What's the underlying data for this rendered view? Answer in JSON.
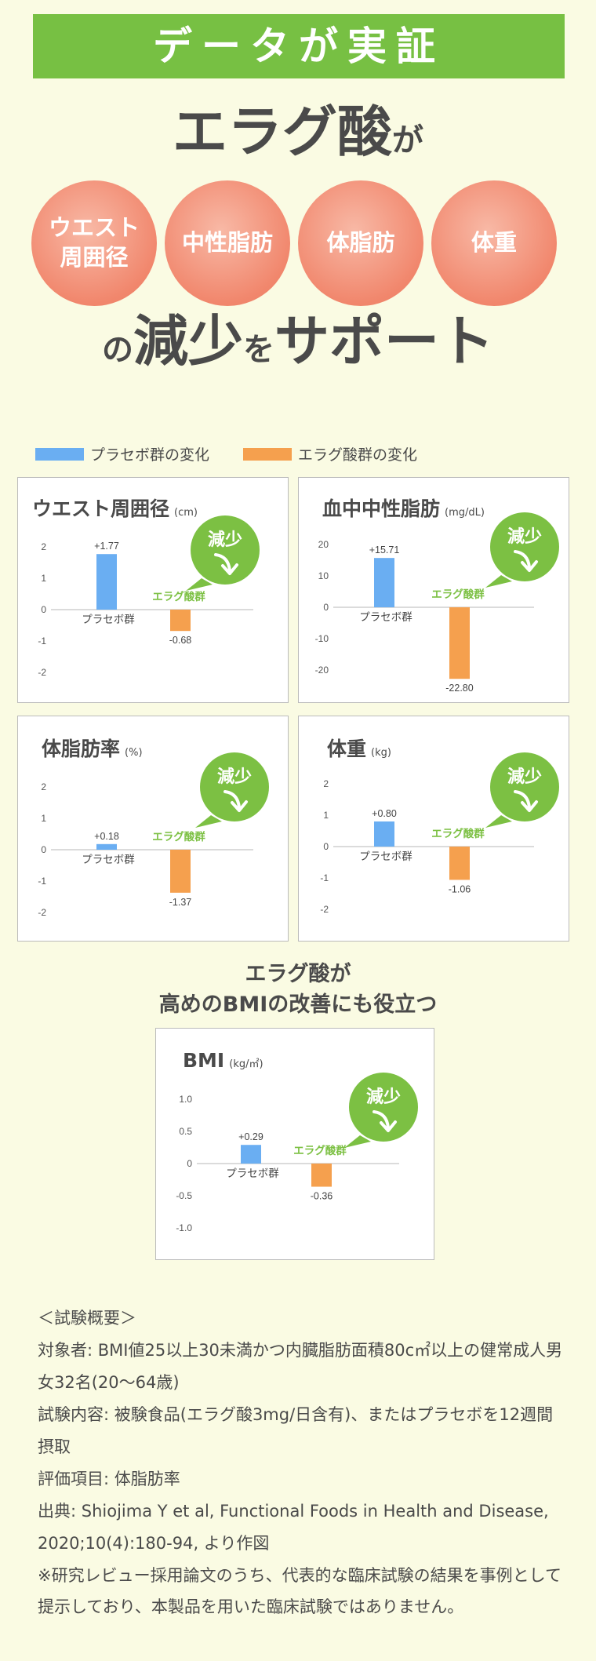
{
  "banner": "データが実証",
  "headline": {
    "main": "エラグ酸",
    "particle": "が"
  },
  "circles": [
    "ウエスト\n周囲径",
    "中性脂肪",
    "体脂肪",
    "体重"
  ],
  "tagline": {
    "p1": "の",
    "w1": "減少",
    "p2": "を",
    "w2": "サポート"
  },
  "legend": {
    "placebo": "プラセボ群の変化",
    "ellagic": "エラグ酸群の変化",
    "colors": {
      "placebo": "#6aaef2",
      "ellagic": "#f5a04e"
    }
  },
  "badge_text": "減少",
  "subheading": {
    "line1": "エラグ酸が",
    "line2": "高めのBMIの改善にも役立つ"
  },
  "chart_data": [
    {
      "type": "bar",
      "title": "ウエスト周囲径",
      "unit": "(cm)",
      "categories": [
        "プラセボ群",
        "エラグ酸群"
      ],
      "values": [
        1.77,
        -0.68
      ],
      "value_labels": [
        "+1.77",
        "-0.68"
      ],
      "yticks": [
        "2",
        "1",
        "0",
        "-1",
        "-2"
      ],
      "ylim": [
        -2,
        2
      ],
      "colors": [
        "#6aaef2",
        "#f5a04e"
      ]
    },
    {
      "type": "bar",
      "title": "血中中性脂肪",
      "unit": "(mg/dL)",
      "categories": [
        "プラセボ群",
        "エラグ酸群"
      ],
      "values": [
        15.71,
        -22.8
      ],
      "value_labels": [
        "+15.71",
        "-22.80"
      ],
      "yticks": [
        "20",
        "10",
        "0",
        "-10",
        "-20"
      ],
      "ylim": [
        -20,
        20
      ],
      "colors": [
        "#6aaef2",
        "#f5a04e"
      ]
    },
    {
      "type": "bar",
      "title": "体脂肪率",
      "unit": "(%)",
      "categories": [
        "プラセボ群",
        "エラグ酸群"
      ],
      "values": [
        0.18,
        -1.37
      ],
      "value_labels": [
        "+0.18",
        "-1.37"
      ],
      "yticks": [
        "2",
        "1",
        "0",
        "-1",
        "-2"
      ],
      "ylim": [
        -2,
        2
      ],
      "colors": [
        "#6aaef2",
        "#f5a04e"
      ]
    },
    {
      "type": "bar",
      "title": "体重",
      "unit": "(kg)",
      "categories": [
        "プラセボ群",
        "エラグ酸群"
      ],
      "values": [
        0.8,
        -1.06
      ],
      "value_labels": [
        "+0.80",
        "-1.06"
      ],
      "yticks": [
        "2",
        "1",
        "0",
        "-1",
        "-2"
      ],
      "ylim": [
        -2,
        2
      ],
      "colors": [
        "#6aaef2",
        "#f5a04e"
      ]
    },
    {
      "type": "bar",
      "title": "BMI",
      "unit": "(kg/㎡)",
      "categories": [
        "プラセボ群",
        "エラグ酸群"
      ],
      "values": [
        0.29,
        -0.36
      ],
      "value_labels": [
        "+0.29",
        "-0.36"
      ],
      "yticks": [
        "1.0",
        "0.5",
        "0",
        "-0.5",
        "-1.0"
      ],
      "ylim": [
        -1,
        1
      ],
      "colors": [
        "#6aaef2",
        "#f5a04e"
      ]
    }
  ],
  "notes": [
    "＜試験概要＞",
    "対象者: BMI値25以上30未満かつ内臓脂肪面積80c㎡以上の健常成人男女32名(20〜64歳)",
    "試験内容: 被験食品(エラグ酸3mg/日含有)、またはプラセボを12週間摂取",
    "評価項目: 体脂肪率",
    "出典: Shiojima Y et al, Functional Foods in Health and Disease, 2020;10(4):180-94, より作図",
    "※研究レビュー採用論文のうち、代表的な臨床試験の結果を事例として提示しており、本製品を用いた臨床試験ではありません。"
  ]
}
